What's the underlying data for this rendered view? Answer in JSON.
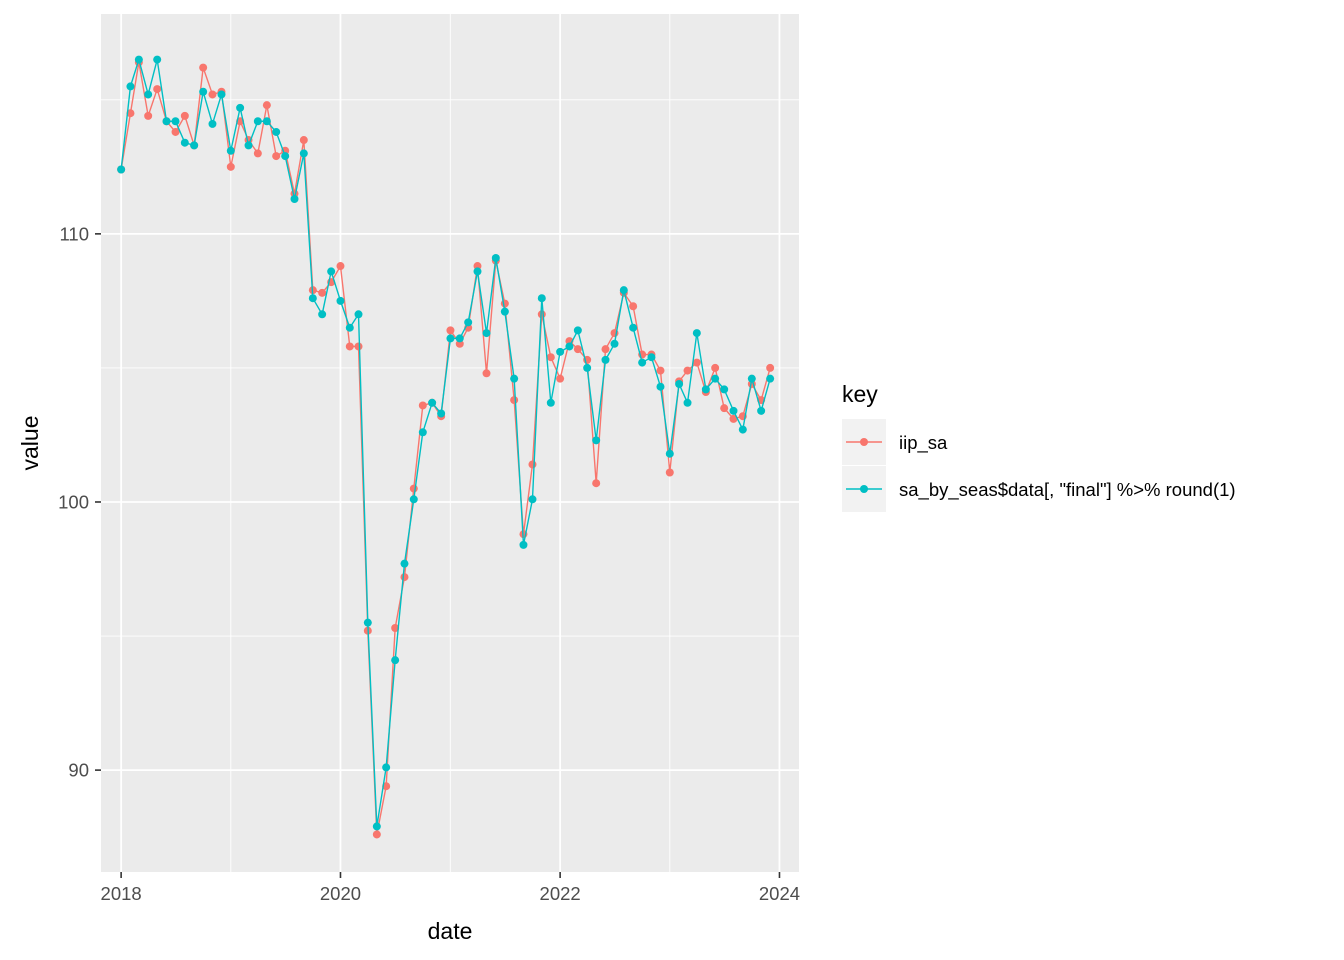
{
  "chart_data": {
    "type": "line",
    "title": "",
    "xlabel": "date",
    "ylabel": "value",
    "x_ticks": [
      "2018",
      "2020",
      "2022",
      "2024"
    ],
    "y_ticks": [
      90,
      100,
      110
    ],
    "xlim": [
      "2017-10-26",
      "2024-03-06"
    ],
    "ylim": [
      86.2,
      118.2
    ],
    "grid": true,
    "legend": {
      "title": "key",
      "position": "right",
      "entries": [
        "iip_sa",
        "sa_by_seas$data[, \"final\"] %>% round(1)"
      ]
    },
    "x": [
      "2018-01",
      "2018-02",
      "2018-03",
      "2018-04",
      "2018-05",
      "2018-06",
      "2018-07",
      "2018-08",
      "2018-09",
      "2018-10",
      "2018-11",
      "2018-12",
      "2019-01",
      "2019-02",
      "2019-03",
      "2019-04",
      "2019-05",
      "2019-06",
      "2019-07",
      "2019-08",
      "2019-09",
      "2019-10",
      "2019-11",
      "2019-12",
      "2020-01",
      "2020-02",
      "2020-03",
      "2020-04",
      "2020-05",
      "2020-06",
      "2020-07",
      "2020-08",
      "2020-09",
      "2020-10",
      "2020-11",
      "2020-12",
      "2021-01",
      "2021-02",
      "2021-03",
      "2021-04",
      "2021-05",
      "2021-06",
      "2021-07",
      "2021-08",
      "2021-09",
      "2021-10",
      "2021-11",
      "2021-12",
      "2022-01",
      "2022-02",
      "2022-03",
      "2022-04",
      "2022-05",
      "2022-06",
      "2022-07",
      "2022-08",
      "2022-09",
      "2022-10",
      "2022-11",
      "2022-12",
      "2023-01",
      "2023-02",
      "2023-03",
      "2023-04",
      "2023-05",
      "2023-06",
      "2023-07",
      "2023-08",
      "2023-09",
      "2023-10",
      "2023-11",
      "2023-12"
    ],
    "series": [
      {
        "name": "iip_sa",
        "color": "#F8766D",
        "values": [
          112.4,
          114.5,
          116.4,
          114.4,
          115.4,
          114.2,
          113.8,
          114.4,
          113.3,
          116.2,
          115.2,
          115.3,
          112.5,
          114.2,
          113.5,
          113.0,
          114.8,
          112.9,
          113.1,
          111.5,
          113.5,
          107.9,
          107.8,
          108.2,
          108.8,
          105.8,
          105.8,
          95.2,
          87.6,
          89.4,
          95.3,
          97.2,
          100.5,
          103.6,
          103.7,
          103.2,
          106.4,
          105.9,
          106.5,
          108.8,
          104.8,
          109.0,
          107.4,
          103.8,
          98.8,
          101.4,
          107.0,
          105.4,
          104.6,
          106.0,
          105.7,
          105.3,
          100.7,
          105.7,
          106.3,
          107.8,
          107.3,
          105.5,
          105.5,
          104.9,
          101.1,
          104.5,
          104.9,
          105.2,
          104.1,
          105.0,
          103.5,
          103.1,
          103.2,
          104.4,
          103.8,
          105.0
        ]
      },
      {
        "name": "sa_by_seas$data[, \"final\"] %>% round(1)",
        "color": "#00BFC4",
        "values": [
          112.4,
          115.5,
          116.5,
          115.2,
          116.5,
          114.2,
          114.2,
          113.4,
          113.3,
          115.3,
          114.1,
          115.2,
          113.1,
          114.7,
          113.3,
          114.2,
          114.2,
          113.8,
          112.9,
          111.3,
          113.0,
          107.6,
          107.0,
          108.6,
          107.5,
          106.5,
          107.0,
          95.5,
          87.9,
          90.1,
          94.1,
          97.7,
          100.1,
          102.6,
          103.7,
          103.3,
          106.1,
          106.1,
          106.7,
          108.6,
          106.3,
          109.1,
          107.1,
          104.6,
          98.4,
          100.1,
          107.6,
          103.7,
          105.6,
          105.8,
          106.4,
          105.0,
          102.3,
          105.3,
          105.9,
          107.9,
          106.5,
          105.2,
          105.4,
          104.3,
          101.8,
          104.4,
          103.7,
          106.3,
          104.2,
          104.6,
          104.2,
          103.4,
          102.7,
          104.6,
          103.4,
          104.6
        ]
      }
    ]
  }
}
